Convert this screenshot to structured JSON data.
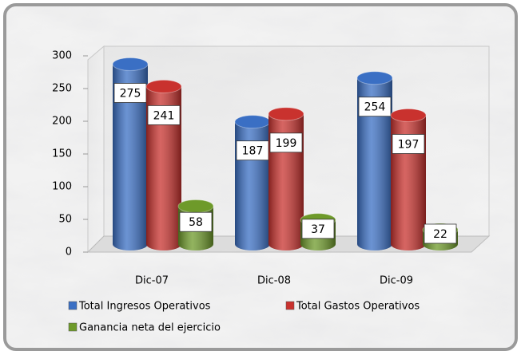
{
  "chart_data": {
    "type": "bar",
    "style": "3d-cylinder",
    "categories": [
      "Dic-07",
      "Dic-08",
      "Dic-09"
    ],
    "series": [
      {
        "name": "Total Ingresos Operativos",
        "color": "#3a6fc4",
        "values": [
          275,
          187,
          254
        ]
      },
      {
        "name": "Total Gastos Operativos",
        "color": "#c9322e",
        "values": [
          241,
          199,
          197
        ]
      },
      {
        "name": "Ganancia neta del ejercicio",
        "color": "#6e9a2a",
        "values": [
          58,
          37,
          22
        ]
      }
    ],
    "ylim": [
      0,
      300
    ],
    "yticks": [
      0,
      50,
      100,
      150,
      200,
      250,
      300
    ],
    "grid": false,
    "legend": "bottom"
  }
}
